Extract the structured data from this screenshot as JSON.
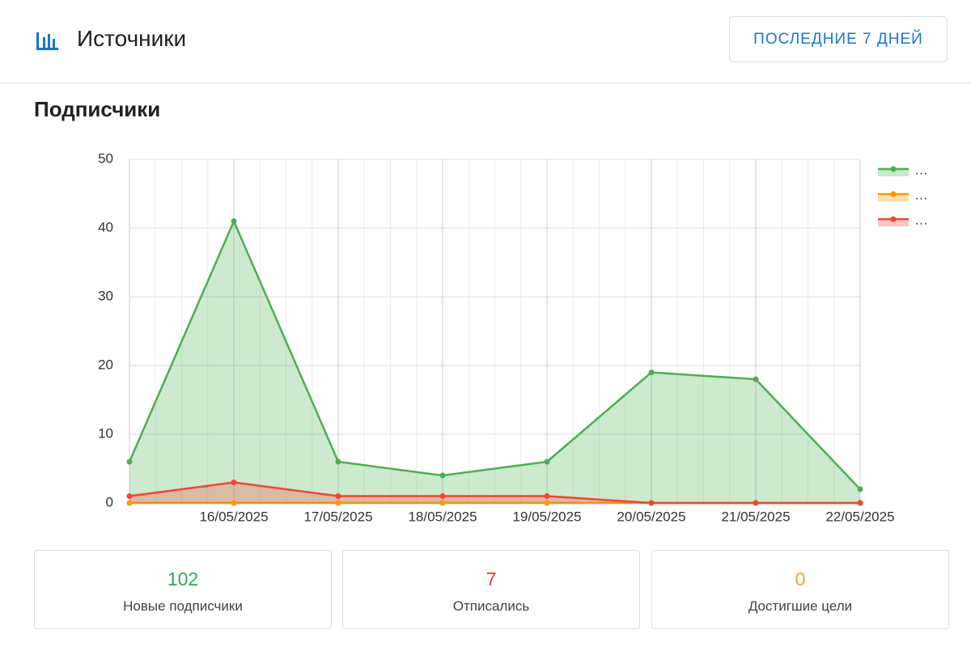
{
  "header": {
    "title": "Источники",
    "button": "ПОСЛЕДНИЕ 7 ДНЕЙ"
  },
  "section_title": "Подписчики",
  "chart_data": {
    "type": "area",
    "categories": [
      null,
      "16/05/2025",
      "17/05/2025",
      "18/05/2025",
      "19/05/2025",
      "20/05/2025",
      "21/05/2025",
      "22/05/2025"
    ],
    "series": [
      {
        "name": "…",
        "color": "#4caf50",
        "values": [
          6,
          41,
          6,
          4,
          6,
          19,
          18,
          2
        ]
      },
      {
        "name": "…",
        "color": "#ff9800",
        "values": [
          0,
          0,
          0,
          0,
          0,
          0,
          0,
          0
        ]
      },
      {
        "name": "…",
        "color": "#f44336",
        "values": [
          1,
          3,
          1,
          1,
          1,
          0,
          0,
          0
        ]
      }
    ],
    "ylim": [
      0,
      50
    ],
    "yticks": [
      0,
      10,
      20,
      30,
      40,
      50
    ],
    "grid": true,
    "legend": "top-right"
  },
  "stats": [
    {
      "value": 102,
      "label": "Новые подписчики"
    },
    {
      "value": 7,
      "label": "Отписались"
    },
    {
      "value": 0,
      "label": "Достигшие цели"
    }
  ]
}
